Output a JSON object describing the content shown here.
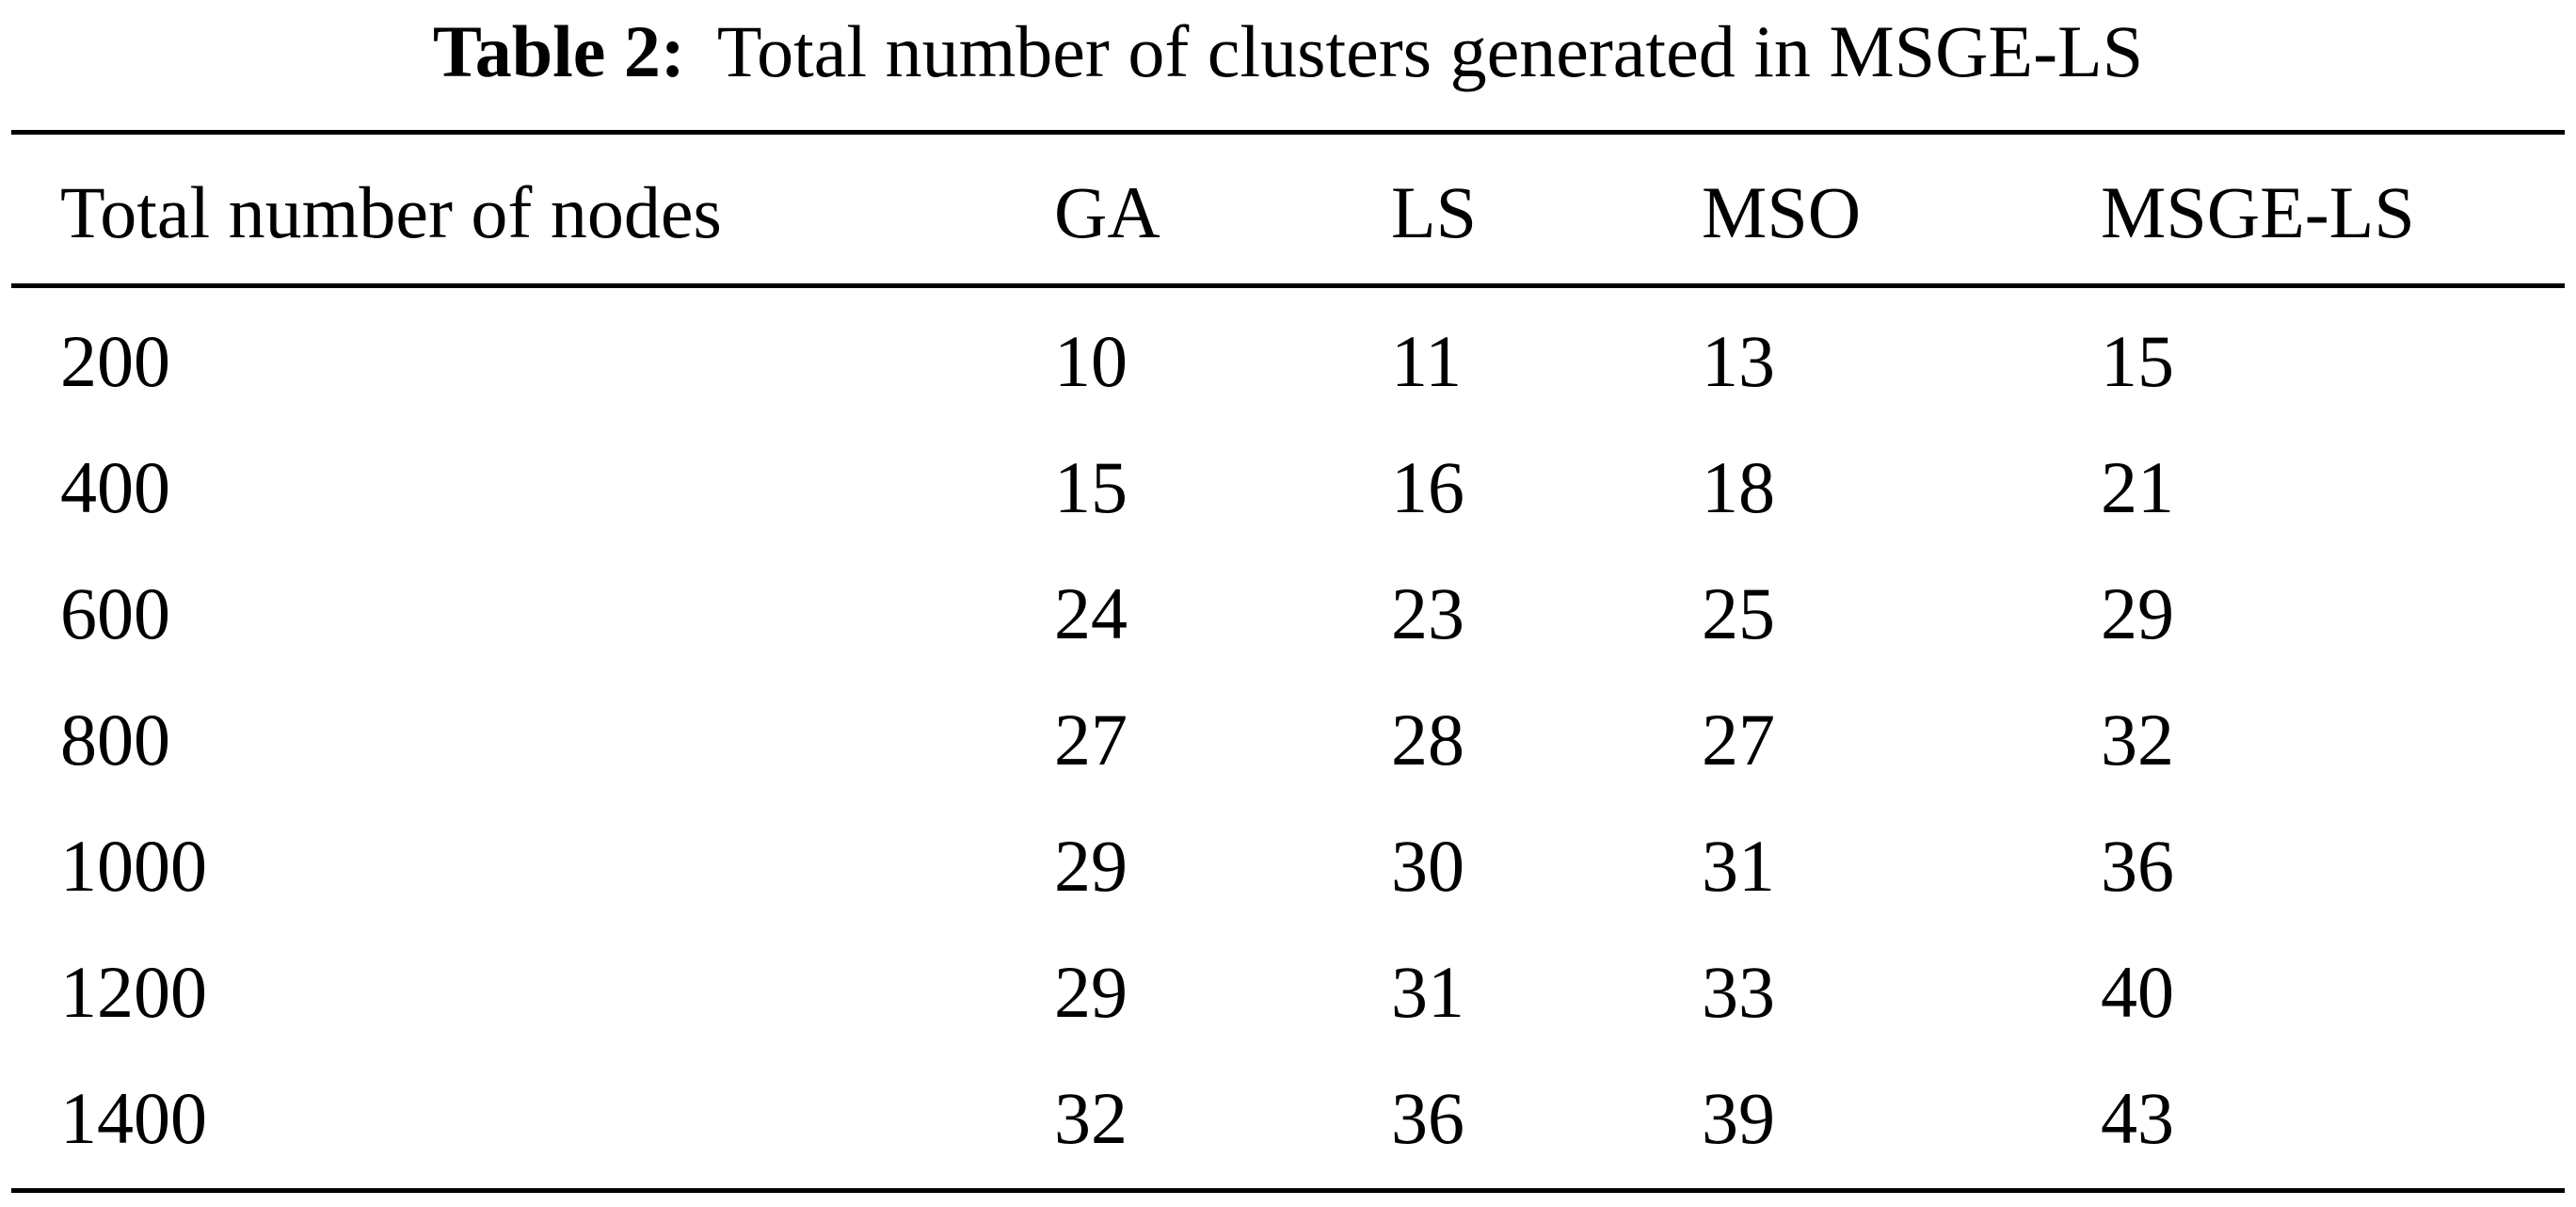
{
  "caption": {
    "label": "Table 2:",
    "text": "Total number of clusters generated in MSGE-LS"
  },
  "table": {
    "headers": [
      "Total number of nodes",
      "GA",
      "LS",
      "MSO",
      "MSGE-LS"
    ],
    "rows": [
      [
        "200",
        "10",
        "11",
        "13",
        "15"
      ],
      [
        "400",
        "15",
        "16",
        "18",
        "21"
      ],
      [
        "600",
        "24",
        "23",
        "25",
        "29"
      ],
      [
        "800",
        "27",
        "28",
        "27",
        "32"
      ],
      [
        "1000",
        "29",
        "30",
        "31",
        "36"
      ],
      [
        "1200",
        "29",
        "31",
        "33",
        "40"
      ],
      [
        "1400",
        "32",
        "36",
        "39",
        "43"
      ]
    ]
  }
}
